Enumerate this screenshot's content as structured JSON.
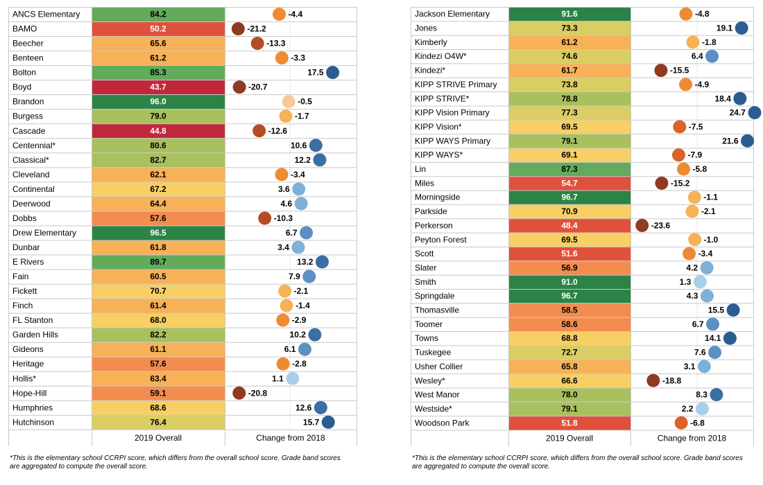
{
  "chart_data": [
    {
      "type": "table",
      "score_column_label": "2019 Overall",
      "change_column_label": "Change from 2018",
      "score_range": [
        40,
        100
      ],
      "change_range": [
        -25,
        25
      ],
      "rows": [
        {
          "name": "ANCS Elementary",
          "score": "84.2",
          "change": "-4.4"
        },
        {
          "name": "BAMO",
          "score": "50.2",
          "change": "-21.2"
        },
        {
          "name": "Beecher",
          "score": "65.6",
          "change": "-13.3"
        },
        {
          "name": "Benteen",
          "score": "61.2",
          "change": "-3.3"
        },
        {
          "name": "Bolton",
          "score": "85.3",
          "change": "17.5"
        },
        {
          "name": "Boyd",
          "score": "43.7",
          "change": "-20.7"
        },
        {
          "name": "Brandon",
          "score": "96.0",
          "change": "-0.5"
        },
        {
          "name": "Burgess",
          "score": "79.0",
          "change": "-1.7"
        },
        {
          "name": "Cascade",
          "score": "44.8",
          "change": "-12.6"
        },
        {
          "name": "Centennial*",
          "score": "80.6",
          "change": "10.6"
        },
        {
          "name": "Classical*",
          "score": "82.7",
          "change": "12.2"
        },
        {
          "name": "Cleveland",
          "score": "62.1",
          "change": "-3.4"
        },
        {
          "name": "Continental",
          "score": "67.2",
          "change": "3.6"
        },
        {
          "name": "Deerwood",
          "score": "64.4",
          "change": "4.6"
        },
        {
          "name": "Dobbs",
          "score": "57.6",
          "change": "-10.3"
        },
        {
          "name": "Drew Elementary",
          "score": "96.5",
          "change": "6.7"
        },
        {
          "name": "Dunbar",
          "score": "61.8",
          "change": "3.4"
        },
        {
          "name": "E Rivers",
          "score": "89.7",
          "change": "13.2"
        },
        {
          "name": "Fain",
          "score": "60.5",
          "change": "7.9"
        },
        {
          "name": "Fickett",
          "score": "70.7",
          "change": "-2.1"
        },
        {
          "name": "Finch",
          "score": "61.4",
          "change": "-1.4"
        },
        {
          "name": "FL Stanton",
          "score": "68.0",
          "change": "-2.9"
        },
        {
          "name": "Garden Hills",
          "score": "82.2",
          "change": "10.2"
        },
        {
          "name": "Gideons",
          "score": "61.1",
          "change": "6.1"
        },
        {
          "name": "Heritage",
          "score": "57.6",
          "change": "-2.8"
        },
        {
          "name": "Hollis*",
          "score": "63.4",
          "change": "1.1"
        },
        {
          "name": "Hope-Hill",
          "score": "59.1",
          "change": "-20.8"
        },
        {
          "name": "Humphries",
          "score": "68.6",
          "change": "12.6"
        },
        {
          "name": "Hutchinson",
          "score": "76.4",
          "change": "15.7"
        }
      ],
      "footnote": "*This is the elementary school CCRPI score, which differs from the overall school score.  Grade band scores are aggregated to compute the overall score."
    },
    {
      "type": "table",
      "score_column_label": "2019 Overall",
      "change_column_label": "Change from 2018",
      "score_range": [
        40,
        100
      ],
      "change_range": [
        -25,
        25
      ],
      "rows": [
        {
          "name": "Jackson Elementary",
          "score": "91.6",
          "change": "-4.8"
        },
        {
          "name": "Jones",
          "score": "73.3",
          "change": "19.1"
        },
        {
          "name": "Kimberly",
          "score": "61.2",
          "change": "-1.8"
        },
        {
          "name": "Kindezi O4W*",
          "score": "74.6",
          "change": "6.4"
        },
        {
          "name": "Kindezi*",
          "score": "61.7",
          "change": "-15.5"
        },
        {
          "name": "KIPP STRIVE Primary",
          "score": "73.8",
          "change": "-4.9"
        },
        {
          "name": "KIPP STRIVE*",
          "score": "78.8",
          "change": "18.4"
        },
        {
          "name": "KIPP Vision Primary",
          "score": "77.3",
          "change": "24.7"
        },
        {
          "name": "KIPP Vision*",
          "score": "69.5",
          "change": "-7.5"
        },
        {
          "name": "KIPP WAYS Primary",
          "score": "79.1",
          "change": "21.6"
        },
        {
          "name": "KIPP WAYS*",
          "score": "69.1",
          "change": "-7.9"
        },
        {
          "name": "Lin",
          "score": "87.3",
          "change": "-5.8"
        },
        {
          "name": "Miles",
          "score": "54.7",
          "change": "-15.2"
        },
        {
          "name": "Morningside",
          "score": "96.7",
          "change": "-1.1"
        },
        {
          "name": "Parkside",
          "score": "70.9",
          "change": "-2.1"
        },
        {
          "name": "Perkerson",
          "score": "48.4",
          "change": "-23.6"
        },
        {
          "name": "Peyton Forest",
          "score": "69.5",
          "change": "-1.0"
        },
        {
          "name": "Scott",
          "score": "51.6",
          "change": "-3.4"
        },
        {
          "name": "Slater",
          "score": "56.9",
          "change": "4.2"
        },
        {
          "name": "Smith",
          "score": "91.0",
          "change": "1.3"
        },
        {
          "name": "Springdale",
          "score": "96.7",
          "change": "4.3"
        },
        {
          "name": "Thomasville",
          "score": "58.5",
          "change": "15.5"
        },
        {
          "name": "Toomer",
          "score": "58.6",
          "change": "6.7"
        },
        {
          "name": "Towns",
          "score": "68.8",
          "change": "14.1"
        },
        {
          "name": "Tuskegee",
          "score": "72.7",
          "change": "7.6"
        },
        {
          "name": "Usher Collier",
          "score": "65.8",
          "change": "3.1"
        },
        {
          "name": "Wesley*",
          "score": "66.6",
          "change": "-18.8"
        },
        {
          "name": "West Manor",
          "score": "78.0",
          "change": "8.3"
        },
        {
          "name": "Westside*",
          "score": "79.1",
          "change": "2.2"
        },
        {
          "name": "Woodson Park",
          "score": "51.8",
          "change": "-6.8"
        }
      ],
      "footnote": "*This is the elementary school CCRPI score, which differs from the overall school score.  Grade band scores are aggregated to compute the overall score."
    }
  ],
  "colors": {
    "grid": "#c8c8c8",
    "zero_line": "#bdbdbd",
    "score_scale": [
      "#c0283a",
      "#e0513c",
      "#f28d4f",
      "#f7b157",
      "#f7cf65",
      "#d9cd63",
      "#a8c05e",
      "#62aa5c",
      "#2b8346"
    ],
    "change_scale_negative": [
      "#f7c99a",
      "#f6b257",
      "#ee8b32",
      "#dc6227",
      "#b64c26",
      "#8f3a23"
    ],
    "change_scale_positive": [
      "#a9cfe8",
      "#7eb0d8",
      "#5d8fc1",
      "#3b6ea5",
      "#2a5d91"
    ]
  }
}
